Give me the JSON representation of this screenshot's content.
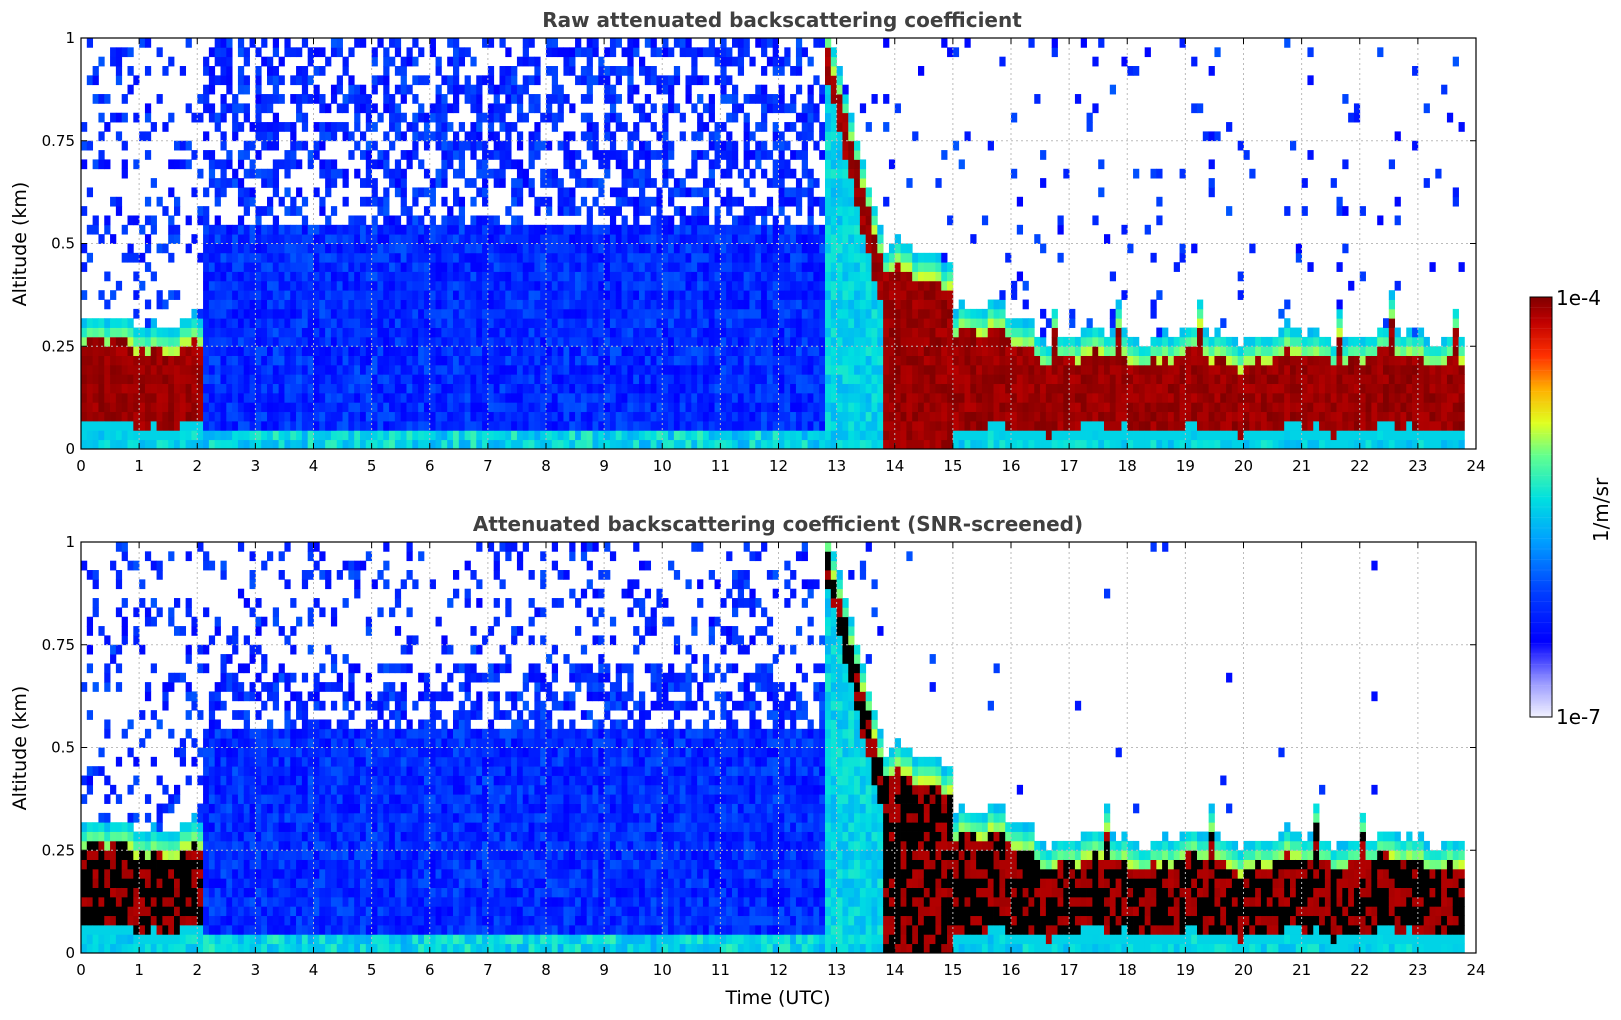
{
  "chart_data": [
    {
      "type": "heatmap",
      "title": "Raw attenuated backscattering coefficient",
      "xlabel": "",
      "ylabel": "Altitude (km)",
      "xlim": [
        0,
        24
      ],
      "ylim": [
        0,
        1
      ],
      "x_ticks": [
        "0",
        "1",
        "2",
        "3",
        "4",
        "5",
        "6",
        "7",
        "8",
        "9",
        "10",
        "11",
        "12",
        "13",
        "14",
        "15",
        "16",
        "17",
        "18",
        "19",
        "20",
        "21",
        "22",
        "23",
        "24"
      ],
      "y_ticks": [
        "0",
        "0.25",
        "0.5",
        "0.75",
        "1"
      ],
      "y_tick_values": [
        0,
        0.25,
        0.5,
        0.75,
        1
      ],
      "grid": true,
      "screened": false,
      "regimes": [
        {
          "t_start": 0.0,
          "t_end": 2.1,
          "cloud_base_km": 0.05,
          "cloud_top_km": 0.25
        },
        {
          "t_start": 2.1,
          "t_end": 13.0,
          "cloud_base_km": null,
          "cloud_top_km": null
        },
        {
          "t_start": 12.8,
          "t_end": 13.8,
          "cloud_base_km": 0.45,
          "cloud_top_km": 1.0
        },
        {
          "t_start": 13.8,
          "t_end": 15.0,
          "cloud_base_km": 0.0,
          "cloud_top_km": 0.45
        },
        {
          "t_start": 15.0,
          "t_end": 23.8,
          "cloud_base_km": 0.04,
          "cloud_top_km": 0.25
        }
      ]
    },
    {
      "type": "heatmap",
      "title": "Attenuated backscattering coefficient (SNR-screened)",
      "xlabel": "Time (UTC)",
      "ylabel": "Altitude (km)",
      "xlim": [
        0,
        24
      ],
      "ylim": [
        0,
        1
      ],
      "x_ticks": [
        "0",
        "1",
        "2",
        "3",
        "4",
        "5",
        "6",
        "7",
        "8",
        "9",
        "10",
        "11",
        "12",
        "13",
        "14",
        "15",
        "16",
        "17",
        "18",
        "19",
        "20",
        "21",
        "22",
        "23",
        "24"
      ],
      "y_ticks": [
        "0",
        "0.25",
        "0.5",
        "0.75",
        "1"
      ],
      "y_tick_values": [
        0,
        0.25,
        0.5,
        0.75,
        1
      ],
      "grid": true,
      "screened": true,
      "regimes": [
        {
          "t_start": 0.0,
          "t_end": 2.1,
          "cloud_base_km": 0.05,
          "cloud_top_km": 0.25
        },
        {
          "t_start": 2.1,
          "t_end": 13.0,
          "cloud_base_km": null,
          "cloud_top_km": null
        },
        {
          "t_start": 12.8,
          "t_end": 13.8,
          "cloud_base_km": 0.45,
          "cloud_top_km": 1.0
        },
        {
          "t_start": 13.8,
          "t_end": 15.0,
          "cloud_base_km": 0.0,
          "cloud_top_km": 0.45
        },
        {
          "t_start": 15.0,
          "t_end": 23.8,
          "cloud_base_km": 0.04,
          "cloud_top_km": 0.25
        }
      ]
    }
  ],
  "colorbar": {
    "label": "1/m/sr",
    "max_label": "1e-4",
    "min_label": "1e-7",
    "scale": "log",
    "colormap": "jet",
    "range": [
      1e-07,
      0.0001
    ]
  }
}
